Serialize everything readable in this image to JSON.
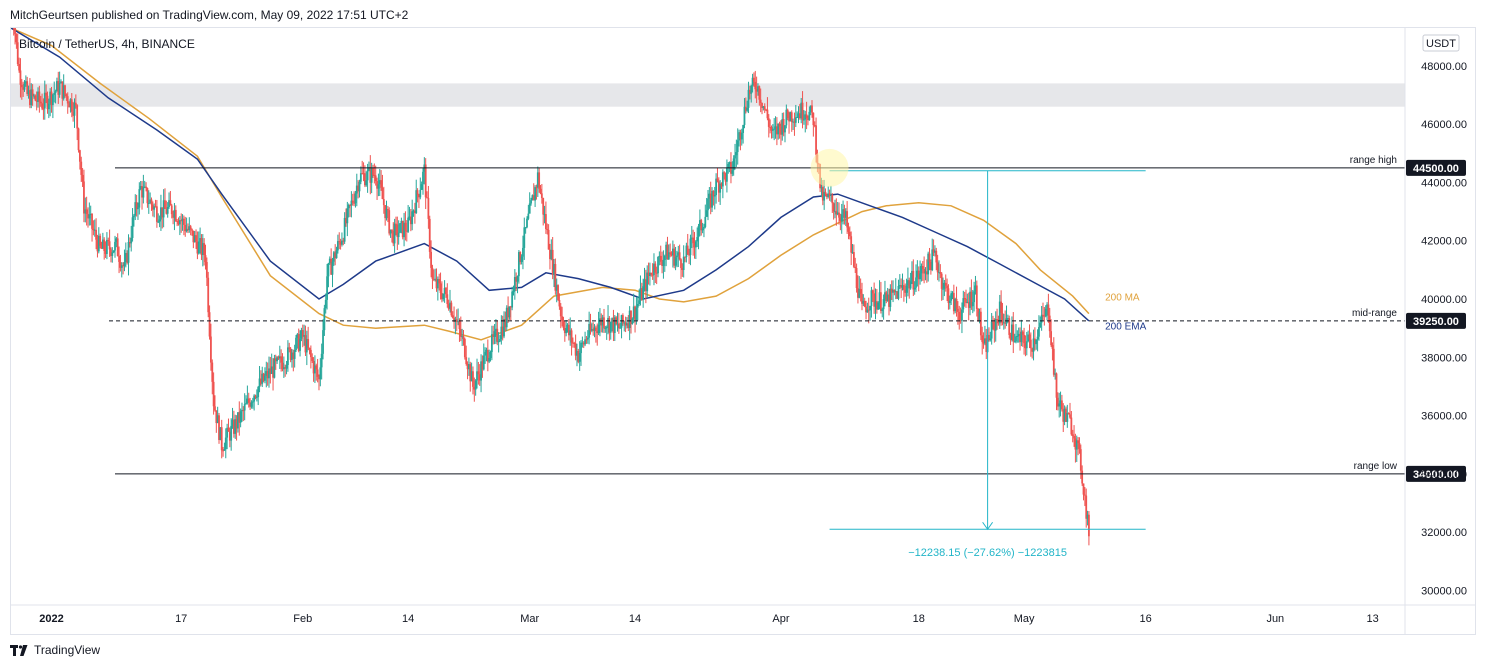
{
  "header": {
    "publisher_line": "MitchGeurtsen published on TradingView.com, May 09, 2022 17:51 UTC+2"
  },
  "footer": {
    "brand": "TradingView"
  },
  "symbol": {
    "title": "Bitcoin / TetherUS, 4h, BINANCE"
  },
  "colors": {
    "up": "#26a69a",
    "down": "#ef5350",
    "ma": "#e0a23c",
    "ema": "#1e3a8a",
    "measure": "#22b5c8",
    "tag_bg": "#131722",
    "zone": "#e6e7ea"
  },
  "icons": [
    "tradingview-logo-icon",
    "highlight-circle"
  ],
  "chart_data": {
    "type": "candlestick",
    "title": "Bitcoin / TetherUS, 4h, BINANCE",
    "currency": "USDT",
    "ylim": [
      29500,
      49300
    ],
    "y_ticks": [
      "48000.00",
      "46000.00",
      "44000.00",
      "42000.00",
      "40000.00",
      "38000.00",
      "36000.00",
      "34000.00",
      "32000.00",
      "30000.00"
    ],
    "x_range": [
      "2021-12-27",
      "2022-06-17"
    ],
    "x_ticks": [
      {
        "date": "2022-01-01",
        "label": "2022",
        "bold": true
      },
      {
        "date": "2022-01-17",
        "label": "17"
      },
      {
        "date": "2022-02-01",
        "label": "Feb"
      },
      {
        "date": "2022-02-14",
        "label": "14"
      },
      {
        "date": "2022-03-01",
        "label": "Mar"
      },
      {
        "date": "2022-03-14",
        "label": "14"
      },
      {
        "date": "2022-04-01",
        "label": "Apr"
      },
      {
        "date": "2022-04-18",
        "label": "18"
      },
      {
        "date": "2022-05-01",
        "label": "May"
      },
      {
        "date": "2022-05-16",
        "label": "16"
      },
      {
        "date": "2022-06-01",
        "label": "Jun"
      },
      {
        "date": "2022-06-13",
        "label": "13"
      }
    ],
    "price_path": [
      [
        "2021-12-27",
        50500
      ],
      [
        "2021-12-28",
        47800
      ],
      [
        "2021-12-29",
        47000
      ],
      [
        "2021-12-31",
        46700
      ],
      [
        "2022-01-02",
        47300
      ],
      [
        "2022-01-04",
        46500
      ],
      [
        "2022-01-05",
        43200
      ],
      [
        "2022-01-07",
        41700
      ],
      [
        "2022-01-09",
        41800
      ],
      [
        "2022-01-10",
        41000
      ],
      [
        "2022-01-11",
        42600
      ],
      [
        "2022-01-12",
        43800
      ],
      [
        "2022-01-14",
        43000
      ],
      [
        "2022-01-16",
        43100
      ],
      [
        "2022-01-18",
        42300
      ],
      [
        "2022-01-20",
        41500
      ],
      [
        "2022-01-21",
        36500
      ],
      [
        "2022-01-22",
        35000
      ],
      [
        "2022-01-24",
        35800
      ],
      [
        "2022-01-26",
        36800
      ],
      [
        "2022-01-28",
        37500
      ],
      [
        "2022-01-30",
        38000
      ],
      [
        "2022-02-01",
        38700
      ],
      [
        "2022-02-03",
        37200
      ],
      [
        "2022-02-04",
        40800
      ],
      [
        "2022-02-06",
        42300
      ],
      [
        "2022-02-08",
        44200
      ],
      [
        "2022-02-10",
        44300
      ],
      [
        "2022-02-12",
        42200
      ],
      [
        "2022-02-14",
        42500
      ],
      [
        "2022-02-16",
        44400
      ],
      [
        "2022-02-17",
        40600
      ],
      [
        "2022-02-19",
        40000
      ],
      [
        "2022-02-21",
        38300
      ],
      [
        "2022-02-22",
        37000
      ],
      [
        "2022-02-24",
        38300
      ],
      [
        "2022-02-26",
        39200
      ],
      [
        "2022-02-28",
        41700
      ],
      [
        "2022-03-02",
        44200
      ],
      [
        "2022-03-03",
        42500
      ],
      [
        "2022-03-05",
        39300
      ],
      [
        "2022-03-07",
        38100
      ],
      [
        "2022-03-08",
        38700
      ],
      [
        "2022-03-10",
        39300
      ],
      [
        "2022-03-12",
        39000
      ],
      [
        "2022-03-14",
        39600
      ],
      [
        "2022-03-16",
        41000
      ],
      [
        "2022-03-18",
        41600
      ],
      [
        "2022-03-20",
        41300
      ],
      [
        "2022-03-22",
        42400
      ],
      [
        "2022-03-24",
        43900
      ],
      [
        "2022-03-26",
        44500
      ],
      [
        "2022-03-28",
        47100
      ],
      [
        "2022-03-29",
        47400
      ],
      [
        "2022-03-31",
        45600
      ],
      [
        "2022-04-02",
        46300
      ],
      [
        "2022-04-04",
        46500
      ],
      [
        "2022-04-05",
        46200
      ],
      [
        "2022-04-06",
        43500
      ],
      [
        "2022-04-07",
        43400
      ],
      [
        "2022-04-09",
        42700
      ],
      [
        "2022-04-11",
        39600
      ],
      [
        "2022-04-12",
        40000
      ],
      [
        "2022-04-14",
        39900
      ],
      [
        "2022-04-16",
        40400
      ],
      [
        "2022-04-18",
        40800
      ],
      [
        "2022-04-20",
        41500
      ],
      [
        "2022-04-21",
        40500
      ],
      [
        "2022-04-23",
        39500
      ],
      [
        "2022-04-25",
        40300
      ],
      [
        "2022-04-26",
        38200
      ],
      [
        "2022-04-28",
        39600
      ],
      [
        "2022-04-30",
        38600
      ],
      [
        "2022-05-02",
        38500
      ],
      [
        "2022-05-04",
        39700
      ],
      [
        "2022-05-05",
        36600
      ],
      [
        "2022-05-06",
        36000
      ],
      [
        "2022-05-07",
        35600
      ],
      [
        "2022-05-08",
        34300
      ],
      [
        "2022-05-09",
        32000
      ]
    ],
    "series": [
      {
        "name": "200 MA",
        "color": "#e0a23c",
        "points": [
          [
            "2021-12-27",
            49300
          ],
          [
            "2022-01-01",
            48700
          ],
          [
            "2022-01-07",
            47400
          ],
          [
            "2022-01-13",
            46200
          ],
          [
            "2022-01-19",
            44900
          ],
          [
            "2022-01-22",
            43500
          ],
          [
            "2022-01-28",
            40800
          ],
          [
            "2022-02-03",
            39500
          ],
          [
            "2022-02-06",
            39100
          ],
          [
            "2022-02-10",
            39000
          ],
          [
            "2022-02-16",
            39100
          ],
          [
            "2022-02-19",
            38900
          ],
          [
            "2022-02-23",
            38600
          ],
          [
            "2022-02-28",
            39100
          ],
          [
            "2022-03-04",
            40100
          ],
          [
            "2022-03-10",
            40400
          ],
          [
            "2022-03-14",
            40300
          ],
          [
            "2022-03-17",
            40000
          ],
          [
            "2022-03-20",
            39900
          ],
          [
            "2022-03-24",
            40100
          ],
          [
            "2022-03-28",
            40700
          ],
          [
            "2022-04-01",
            41500
          ],
          [
            "2022-04-05",
            42200
          ],
          [
            "2022-04-08",
            42600
          ],
          [
            "2022-04-11",
            43000
          ],
          [
            "2022-04-14",
            43200
          ],
          [
            "2022-04-18",
            43300
          ],
          [
            "2022-04-22",
            43200
          ],
          [
            "2022-04-26",
            42700
          ],
          [
            "2022-04-30",
            41900
          ],
          [
            "2022-05-03",
            41000
          ],
          [
            "2022-05-07",
            40100
          ],
          [
            "2022-05-09",
            39500
          ]
        ]
      },
      {
        "name": "200 EMA",
        "color": "#1e3a8a",
        "points": [
          [
            "2021-12-27",
            49300
          ],
          [
            "2022-01-02",
            48300
          ],
          [
            "2022-01-08",
            46900
          ],
          [
            "2022-01-14",
            45800
          ],
          [
            "2022-01-19",
            44800
          ],
          [
            "2022-01-22",
            43600
          ],
          [
            "2022-01-28",
            41300
          ],
          [
            "2022-02-03",
            40000
          ],
          [
            "2022-02-06",
            40500
          ],
          [
            "2022-02-10",
            41300
          ],
          [
            "2022-02-16",
            41900
          ],
          [
            "2022-02-20",
            41300
          ],
          [
            "2022-02-24",
            40300
          ],
          [
            "2022-02-28",
            40400
          ],
          [
            "2022-03-03",
            40900
          ],
          [
            "2022-03-07",
            40700
          ],
          [
            "2022-03-11",
            40400
          ],
          [
            "2022-03-15",
            40000
          ],
          [
            "2022-03-20",
            40300
          ],
          [
            "2022-03-24",
            41000
          ],
          [
            "2022-03-28",
            41800
          ],
          [
            "2022-04-01",
            42800
          ],
          [
            "2022-04-05",
            43500
          ],
          [
            "2022-04-08",
            43600
          ],
          [
            "2022-04-12",
            43200
          ],
          [
            "2022-04-16",
            42800
          ],
          [
            "2022-04-20",
            42300
          ],
          [
            "2022-04-24",
            41800
          ],
          [
            "2022-04-28",
            41200
          ],
          [
            "2022-05-02",
            40600
          ],
          [
            "2022-05-06",
            40000
          ],
          [
            "2022-05-09",
            39250
          ]
        ]
      }
    ],
    "levels": [
      {
        "name": "range high",
        "value": 44500,
        "tag": "44500.00",
        "style": "solid"
      },
      {
        "name": "mid-range",
        "value": 39250,
        "tag": "39250.00",
        "style": "dashed"
      },
      {
        "name": "range low",
        "value": 34000,
        "tag": "34000.00",
        "style": "solid"
      }
    ],
    "zone": {
      "from": 46600,
      "to": 47400
    },
    "measure": {
      "from_date": "2022-04-07",
      "to_date": "2022-05-16",
      "high": 44400,
      "low": 32100,
      "label": "−12238.15 (−27.62%) −1223815"
    },
    "highlight": {
      "date": "2022-04-07",
      "value": 44500
    },
    "series_labels": [
      {
        "text": "200 MA",
        "date": "2022-05-11",
        "value": 39950,
        "color": "#e0a23c"
      },
      {
        "text": "200 EMA",
        "date": "2022-05-11",
        "value": 38950,
        "color": "#1e3a8a"
      }
    ]
  }
}
